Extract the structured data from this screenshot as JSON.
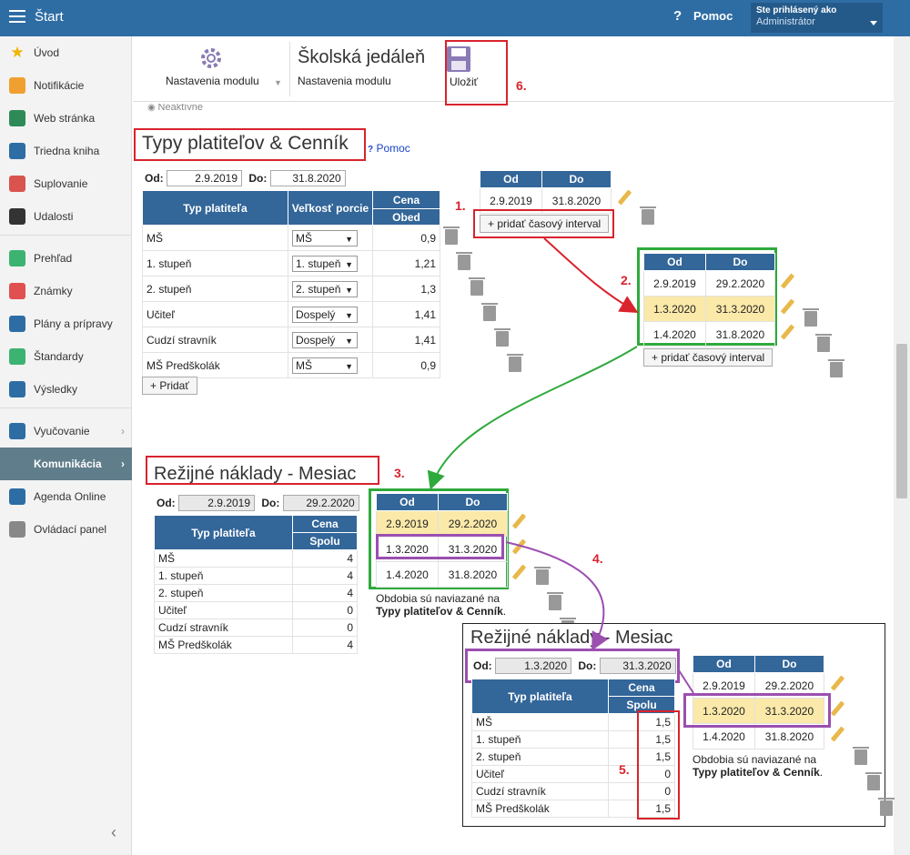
{
  "topbar": {
    "title": "Štart",
    "help_label": "Pomoc",
    "login_line1": "Ste prihlásený ako",
    "login_line2": "Administrátor"
  },
  "sidebar": {
    "items": [
      {
        "label": "Úvod",
        "icon": "star-icon",
        "color": "#f2b400"
      },
      {
        "label": "Notifikácie",
        "icon": "envelope-icon",
        "color": "#f0a030"
      },
      {
        "label": "Web stránka",
        "icon": "home-icon",
        "color": "#2e8b57"
      },
      {
        "label": "Triedna kniha",
        "icon": "book-icon",
        "color": "#2e6da4"
      },
      {
        "label": "Suplovanie",
        "icon": "user-icon",
        "color": "#d9534f"
      },
      {
        "label": "Udalosti",
        "icon": "calendar-icon",
        "color": "#333333"
      },
      {
        "label": "Prehľad",
        "icon": "check-circle-icon",
        "color": "#3cb371"
      },
      {
        "label": "Známky",
        "icon": "grade-icon",
        "color": "#e05050"
      },
      {
        "label": "Plány a prípravy",
        "icon": "briefcase-icon",
        "color": "#2e6da4"
      },
      {
        "label": "Štandardy",
        "icon": "shield-icon",
        "color": "#3cb371"
      },
      {
        "label": "Výsledky",
        "icon": "bar-chart-icon",
        "color": "#2e6da4"
      },
      {
        "label": "Vyučovanie",
        "icon": "screen-icon",
        "color": "#2e6da4"
      },
      {
        "label": "Komunikácia",
        "icon": "chat-icon",
        "color": "#ffffff"
      },
      {
        "label": "Agenda Online",
        "icon": "pen-icon",
        "color": "#2e6da4"
      },
      {
        "label": "Ovládací panel",
        "icon": "gear-icon",
        "color": "#888888"
      }
    ]
  },
  "toolbar": {
    "module_settings": "Nastavenia modulu",
    "page_title": "Školská jedáleň",
    "page_subtitle": "Nastavenia modulu",
    "save": "Uložiť"
  },
  "cut_text": "Neaktívne",
  "section1": {
    "title": "Typy platiteľov & Cenník",
    "help": "Pomoc",
    "od_label": "Od:",
    "od_value": "2.9.2019",
    "do_label": "Do:",
    "do_value": "31.8.2020",
    "col_type": "Typ platiteľa",
    "col_portion": "Veľkosť porcie",
    "col_price": "Cena",
    "col_lunch": "Obed",
    "rows": [
      {
        "type": "MŠ",
        "portion": "MŠ",
        "price": "0,9"
      },
      {
        "type": "1. stupeň",
        "portion": "1. stupeň",
        "price": "1,21"
      },
      {
        "type": "2. stupeň",
        "portion": "2. stupeň",
        "price": "1,3"
      },
      {
        "type": "Učiteľ",
        "portion": "Dospelý",
        "price": "1,41"
      },
      {
        "type": "Cudzí stravník",
        "portion": "Dospelý",
        "price": "1,41"
      },
      {
        "type": "MŠ Predškolák",
        "portion": "MŠ",
        "price": "0,9"
      }
    ],
    "add": "+ Pridať"
  },
  "intervals": {
    "col_od": "Od",
    "col_do": "Do",
    "add": "+ pridať časový interval",
    "single": [
      {
        "od": "2.9.2019",
        "do": "31.8.2020"
      }
    ],
    "split": [
      {
        "od": "2.9.2019",
        "do": "29.2.2020"
      },
      {
        "od": "1.3.2020",
        "do": "31.3.2020"
      },
      {
        "od": "1.4.2020",
        "do": "31.8.2020"
      }
    ]
  },
  "section2": {
    "title": "Režijné náklady - Mesiac",
    "od_label": "Od:",
    "od_value": "2.9.2019",
    "do_label": "Do:",
    "do_value": "29.2.2020",
    "col_type": "Typ platiteľa",
    "col_price": "Cena",
    "col_total": "Spolu",
    "rows": [
      {
        "type": "MŠ",
        "v": "4"
      },
      {
        "type": "1. stupeň",
        "v": "4"
      },
      {
        "type": "2. stupeň",
        "v": "4"
      },
      {
        "type": "Učiteľ",
        "v": "0"
      },
      {
        "type": "Cudzí stravník",
        "v": "0"
      },
      {
        "type": "MŠ Predškolák",
        "v": "4"
      }
    ],
    "note1": "Obdobia sú naviazané na",
    "note2": "Typy platiteľov & Cenník",
    "note_end": "."
  },
  "section3": {
    "title": "Režijné náklady - Mesiac",
    "od_label": "Od:",
    "od_value": "1.3.2020",
    "do_label": "Do:",
    "do_value": "31.3.2020",
    "rows": [
      {
        "type": "MŠ",
        "v": "1,5"
      },
      {
        "type": "1. stupeň",
        "v": "1,5"
      },
      {
        "type": "2. stupeň",
        "v": "1,5"
      },
      {
        "type": "Učiteľ",
        "v": "0"
      },
      {
        "type": "Cudzí stravník",
        "v": "0"
      },
      {
        "type": "MŠ Predškolák",
        "v": "1,5"
      }
    ]
  },
  "steps": {
    "s1": "1.",
    "s2": "2.",
    "s3": "3.",
    "s4": "4.",
    "s5": "5.",
    "s6": "6."
  }
}
